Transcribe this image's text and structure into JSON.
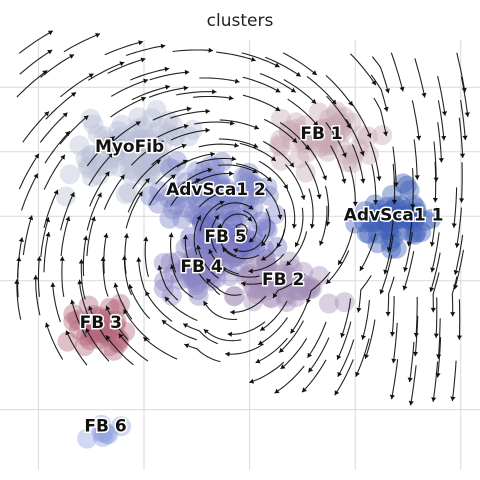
{
  "chart_data": {
    "type": "scatter",
    "title": "clusters",
    "xlim": [
      0,
      100
    ],
    "ylim": [
      0,
      100
    ],
    "grid": true,
    "grid_x": [
      8,
      30,
      52,
      74,
      96
    ],
    "grid_y": [
      14,
      44,
      59,
      74,
      89
    ],
    "clusters": [
      {
        "label": "MyoFib",
        "x": 27,
        "y": 74,
        "color": "#b9bed6"
      },
      {
        "label": "AdvSca1 2",
        "x": 45,
        "y": 64,
        "color": "#7f86c8"
      },
      {
        "label": "FB 1",
        "x": 67,
        "y": 77,
        "color": "#c9a9b6"
      },
      {
        "label": "AdvSca1 1",
        "x": 82,
        "y": 58,
        "color": "#3f5fb8"
      },
      {
        "label": "FB 5",
        "x": 47,
        "y": 53,
        "color": "#6f73c4"
      },
      {
        "label": "FB 4",
        "x": 42,
        "y": 46,
        "color": "#8c86c4"
      },
      {
        "label": "FB 2",
        "x": 59,
        "y": 43,
        "color": "#a48fb8"
      },
      {
        "label": "FB 3",
        "x": 21,
        "y": 33,
        "color": "#b5687f"
      },
      {
        "label": "FB 6",
        "x": 22,
        "y": 9,
        "color": "#8fa3e0"
      }
    ]
  }
}
